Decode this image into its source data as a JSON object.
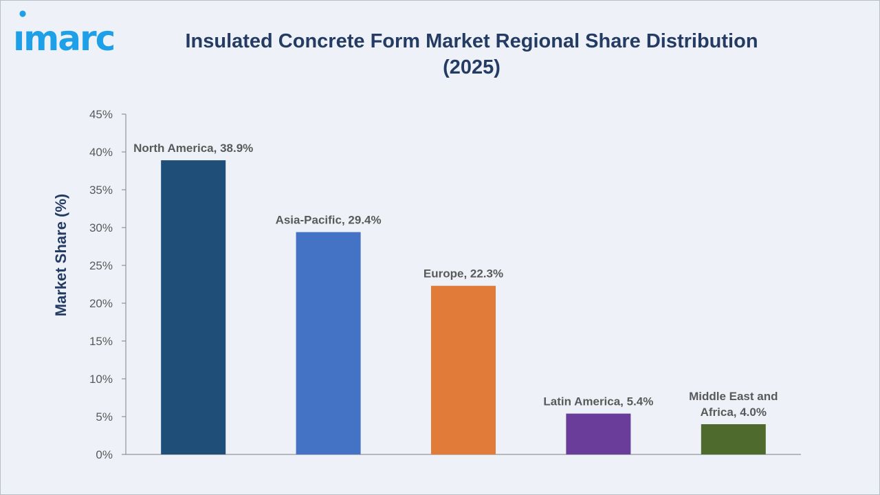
{
  "logo": {
    "text": "imarc",
    "color": "#1ea0e8"
  },
  "chart_data": {
    "type": "bar",
    "title_line1": "Insulated Concrete Form Market Regional Share Distribution",
    "title_line2": "(2025)",
    "xlabel": "",
    "ylabel": "Market Share (%)",
    "ylim": [
      0,
      45
    ],
    "yticks": [
      0,
      5,
      10,
      15,
      20,
      25,
      30,
      35,
      40,
      45
    ],
    "ytick_labels": [
      "0%",
      "5%",
      "10%",
      "15%",
      "20%",
      "25%",
      "30%",
      "35%",
      "40%",
      "45%"
    ],
    "grid": false,
    "legend": "none",
    "categories": [
      "North America",
      "Asia-Pacific",
      "Europe",
      "Latin America",
      "Middle East and Africa"
    ],
    "values": [
      38.9,
      29.4,
      22.3,
      5.4,
      4.0
    ],
    "data_labels": [
      [
        "North America, 38.9%"
      ],
      [
        "Asia-Pacific, 29.4%"
      ],
      [
        "Europe, 22.3%"
      ],
      [
        "Latin America, 5.4%"
      ],
      [
        "Middle East and",
        "Africa, 4.0%"
      ]
    ],
    "colors": [
      "#1f4e79",
      "#4472c4",
      "#e07b39",
      "#6a3d9a",
      "#4e6b2d"
    ],
    "axis_color": "#7f7f7f",
    "text_color": "#595959",
    "ylabel_color": "#243b63"
  }
}
